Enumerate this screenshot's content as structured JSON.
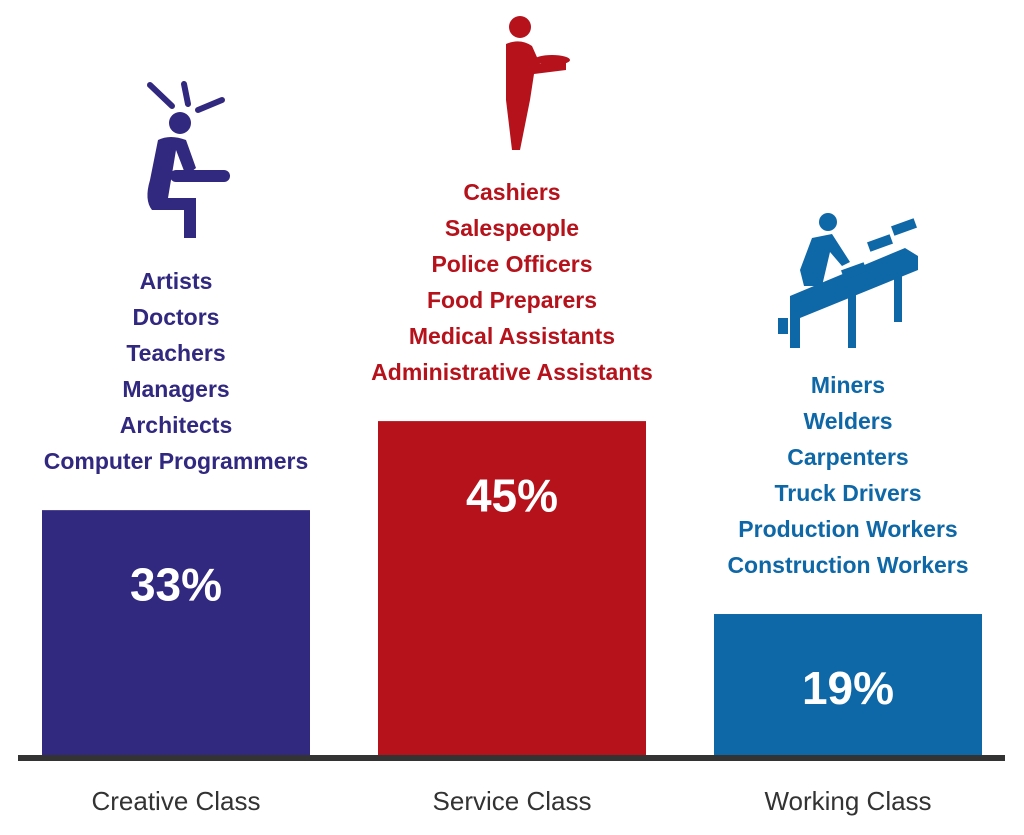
{
  "chart_data": {
    "type": "bar",
    "categories": [
      "Creative Class",
      "Service Class",
      "Working Class"
    ],
    "values": [
      33,
      45,
      19
    ],
    "value_labels": [
      "33%",
      "45%",
      "19%"
    ],
    "colors": [
      "#31287f",
      "#b5121b",
      "#0e67a6"
    ],
    "occupations": [
      [
        "Artists",
        "Doctors",
        "Teachers",
        "Managers",
        "Architects",
        "Computer Programmers"
      ],
      [
        "Cashiers",
        "Salespeople",
        "Police Officers",
        "Food Preparers",
        "Medical Assistants",
        "Administrative Assistants"
      ],
      [
        "Miners",
        "Welders",
        "Carpenters",
        "Truck Drivers",
        "Production Workers",
        "Construction Workers"
      ]
    ]
  }
}
